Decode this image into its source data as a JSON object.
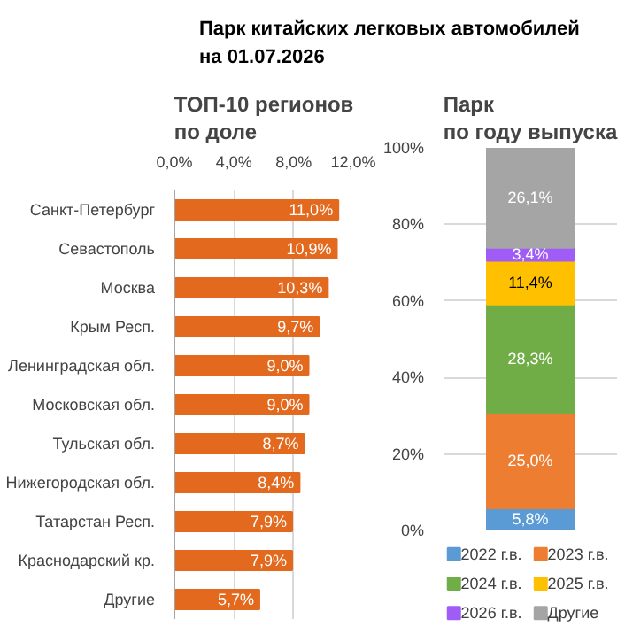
{
  "chart_data": [
    {
      "type": "other",
      "title": "Парк китайских легковых автомобилей\nна 01.07.2026"
    },
    {
      "type": "bar",
      "title": "ТОП-10 регионов\nпо доле",
      "orientation": "horizontal",
      "categories": [
        "Санкт-Петербург",
        "Севастополь",
        "Москва",
        "Крым Респ.",
        "Ленинградская обл.",
        "Московская обл.",
        "Тульская обл.",
        "Нижегородская обл.",
        "Татарстан Респ.",
        "Краснодарский кр.",
        "Другие"
      ],
      "values": [
        11.0,
        10.9,
        10.3,
        9.7,
        9.0,
        9.0,
        8.7,
        8.4,
        7.9,
        7.9,
        5.7
      ],
      "value_labels": [
        "11,0%",
        "10,9%",
        "10,3%",
        "9,7%",
        "9,0%",
        "9,0%",
        "8,7%",
        "8,4%",
        "7,9%",
        "7,9%",
        "5,7%"
      ],
      "color": "#e2691d",
      "xlim": [
        0,
        12
      ],
      "xticks": [
        {
          "value": 0,
          "label": "0,0%"
        },
        {
          "value": 4,
          "label": "4,0%"
        },
        {
          "value": 8,
          "label": "8,0%"
        },
        {
          "value": 12,
          "label": "12,0%"
        }
      ],
      "grid": "x"
    },
    {
      "type": "bar",
      "title": "Парк\nпо году выпуска",
      "stacked": true,
      "categories": [
        null
      ],
      "series": [
        {
          "name": "2022 г.в.",
          "color": "#5b9bd5",
          "values": [
            5.8
          ],
          "value_labels": [
            "5,8%"
          ]
        },
        {
          "name": "2023 г.в.",
          "color": "#ed7d31",
          "values": [
            25.0
          ],
          "value_labels": [
            "25,0%"
          ]
        },
        {
          "name": "2024 г.в.",
          "color": "#70ad47",
          "values": [
            28.3
          ],
          "value_labels": [
            "28,3%"
          ]
        },
        {
          "name": "2025 г.в.",
          "color": "#ffc000",
          "values": [
            11.4
          ],
          "value_labels": [
            "11,4%"
          ]
        },
        {
          "name": "2026 г.в.",
          "color": "#9f5cf7",
          "values": [
            3.4
          ],
          "value_labels": [
            "3,4%"
          ]
        },
        {
          "name": "Другие",
          "color": "#a5a5a5",
          "values": [
            26.1
          ],
          "value_labels": [
            "26,1%"
          ]
        }
      ],
      "ylim": [
        0,
        100
      ],
      "yticks": [
        {
          "value": 0,
          "label": "0%"
        },
        {
          "value": 20,
          "label": "20%"
        },
        {
          "value": 40,
          "label": "40%"
        },
        {
          "value": 60,
          "label": "60%"
        },
        {
          "value": 80,
          "label": "80%"
        },
        {
          "value": 100,
          "label": "100%"
        }
      ],
      "grid": "y",
      "legend": "bottom"
    }
  ]
}
